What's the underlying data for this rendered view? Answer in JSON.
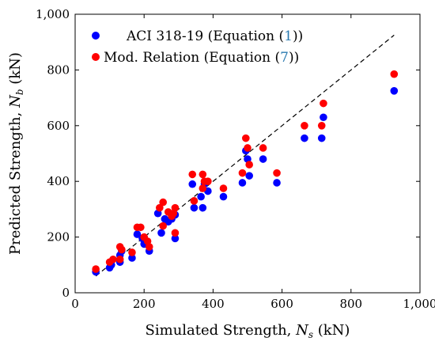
{
  "chart_data": {
    "type": "scatter",
    "title": "",
    "xlabel": {
      "prefix": "Simulated Strength, ",
      "var": "N",
      "sub": "s",
      "suffix": " (kN)"
    },
    "ylabel": {
      "prefix": "Predicted Strength, ",
      "var": "N",
      "sub": "b",
      "suffix": " (kN)"
    },
    "xlim": [
      0,
      1000
    ],
    "ylim": [
      0,
      1000
    ],
    "xticks": [
      0,
      200,
      400,
      600,
      800,
      1000
    ],
    "yticks": [
      0,
      200,
      400,
      600,
      800,
      1000
    ],
    "xtick_labels": [
      "0",
      "200",
      "400",
      "600",
      "800",
      "1,000"
    ],
    "ytick_labels": [
      "0",
      "200",
      "400",
      "600",
      "800",
      "1,000"
    ],
    "grid": false,
    "legend_position": "top-left",
    "reference_line": {
      "style": "dashed",
      "color": "#000000",
      "from": [
        60,
        60
      ],
      "to": [
        925,
        925
      ]
    },
    "series": [
      {
        "name": "ACI 318-19 (Equation (1))",
        "legend": {
          "text": "ACI 318-19 (Equation (",
          "ref": "1",
          "close": "))"
        },
        "color": "#0000ff",
        "points": [
          [
            60,
            75
          ],
          [
            100,
            90
          ],
          [
            105,
            100
          ],
          [
            130,
            110
          ],
          [
            130,
            135
          ],
          [
            135,
            150
          ],
          [
            165,
            125
          ],
          [
            180,
            210
          ],
          [
            195,
            195
          ],
          [
            200,
            175
          ],
          [
            215,
            150
          ],
          [
            240,
            285
          ],
          [
            250,
            215
          ],
          [
            260,
            265
          ],
          [
            270,
            255
          ],
          [
            280,
            265
          ],
          [
            290,
            195
          ],
          [
            290,
            280
          ],
          [
            340,
            390
          ],
          [
            345,
            305
          ],
          [
            365,
            345
          ],
          [
            370,
            305
          ],
          [
            375,
            390
          ],
          [
            385,
            365
          ],
          [
            430,
            345
          ],
          [
            485,
            395
          ],
          [
            495,
            510
          ],
          [
            500,
            480
          ],
          [
            505,
            420
          ],
          [
            545,
            480
          ],
          [
            585,
            395
          ],
          [
            665,
            555
          ],
          [
            715,
            555
          ],
          [
            720,
            630
          ],
          [
            925,
            725
          ]
        ]
      },
      {
        "name": "Mod. Relation (Equation (7))",
        "legend": {
          "text": "Mod. Relation (Equation (",
          "ref": "7",
          "close": "))"
        },
        "color": "#ff0000",
        "points": [
          [
            60,
            85
          ],
          [
            100,
            110
          ],
          [
            110,
            120
          ],
          [
            130,
            120
          ],
          [
            130,
            165
          ],
          [
            135,
            155
          ],
          [
            165,
            145
          ],
          [
            180,
            235
          ],
          [
            190,
            235
          ],
          [
            200,
            200
          ],
          [
            210,
            185
          ],
          [
            215,
            165
          ],
          [
            245,
            305
          ],
          [
            255,
            325
          ],
          [
            255,
            240
          ],
          [
            270,
            290
          ],
          [
            280,
            275
          ],
          [
            285,
            285
          ],
          [
            290,
            305
          ],
          [
            290,
            215
          ],
          [
            340,
            425
          ],
          [
            345,
            330
          ],
          [
            370,
            375
          ],
          [
            370,
            425
          ],
          [
            375,
            400
          ],
          [
            385,
            400
          ],
          [
            430,
            375
          ],
          [
            485,
            430
          ],
          [
            495,
            555
          ],
          [
            500,
            520
          ],
          [
            505,
            460
          ],
          [
            545,
            520
          ],
          [
            585,
            430
          ],
          [
            665,
            600
          ],
          [
            715,
            600
          ],
          [
            720,
            680
          ],
          [
            925,
            785
          ]
        ]
      }
    ]
  }
}
